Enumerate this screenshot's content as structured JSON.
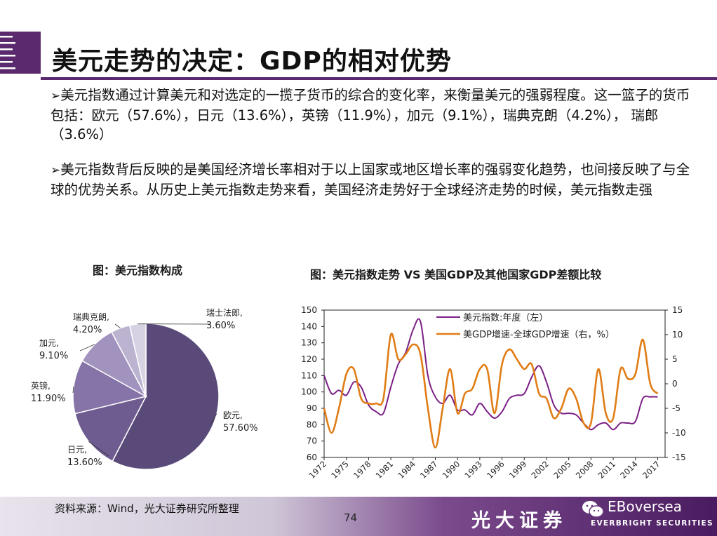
{
  "title": "美元走势的决定：GDP的相对优势",
  "bullets": [
    {
      "marker": "➢",
      "text": "美元指数通过计算美元和对选定的一揽子货币的综合的变化率，来衡量美元的强弱程度。这一篮子的货币包括：欧元（57.6%），日元（13.6%），英镑（11.9%），加元（9.1%），瑞典克朗（4.2%）， 瑞郎（3.6%）"
    },
    {
      "marker": "➢",
      "text": "美元指数背后反映的是美国经济增长率相对于以上国家或地区增长率的强弱变化趋势，也间接反映了与全球的优势关系。从历史上美元指数走势来看，美国经济走势好于全球经济走势的时候，美元指数走强"
    }
  ],
  "chart_titles": {
    "pie": "图：美元指数构成",
    "line": "图：美元指数走势 VS 美国GDP及其他国家GDP差额比较"
  },
  "chart_data": [
    {
      "type": "pie",
      "title": "图：美元指数构成",
      "slices": [
        {
          "label": "欧元,",
          "value_label": "57.60%",
          "value": 57.6,
          "color": "#5a4a7a"
        },
        {
          "label": "日元,",
          "value_label": "13.60%",
          "value": 13.6,
          "color": "#6e5c90"
        },
        {
          "label": "英镑,",
          "value_label": "11.90%",
          "value": 11.9,
          "color": "#8673a7"
        },
        {
          "label": "加元,",
          "value_label": "9.10%",
          "value": 9.1,
          "color": "#a193be"
        },
        {
          "label": "瑞典克朗,",
          "value_label": "4.20%",
          "value": 4.2,
          "color": "#bcb3d1"
        },
        {
          "label": "瑞士法郎,",
          "value_label": "3.60%",
          "value": 3.6,
          "color": "#d7d2e3"
        }
      ]
    },
    {
      "type": "line",
      "title": "图：美元指数走势 VS 美国GDP及其他国家GDP差额比较",
      "x_ticks": [
        "1972",
        "1975",
        "1978",
        "1981",
        "1984",
        "1987",
        "1990",
        "1993",
        "1996",
        "1999",
        "2002",
        "2005",
        "2008",
        "2011",
        "2014",
        "2017"
      ],
      "xlim": [
        1972,
        2018
      ],
      "y_left": {
        "lim": [
          60,
          150
        ],
        "ticks": [
          "60",
          "70",
          "80",
          "90",
          "100",
          "110",
          "120",
          "130",
          "140",
          "150"
        ]
      },
      "y_right": {
        "lim": [
          -15,
          15
        ],
        "ticks": [
          "-15",
          "-10",
          "-5",
          "0",
          "5",
          "10",
          "15"
        ]
      },
      "legend_position": "top",
      "series": [
        {
          "name": "美元指数:年度（左）",
          "axis": "left",
          "color": "#7b1f86",
          "x": [
            1972,
            1973,
            1974,
            1975,
            1976,
            1977,
            1978,
            1979,
            1980,
            1981,
            1982,
            1983,
            1984,
            1985,
            1986,
            1987,
            1988,
            1989,
            1990,
            1991,
            1992,
            1993,
            1994,
            1995,
            1996,
            1997,
            1998,
            1999,
            2000,
            2001,
            2002,
            2003,
            2004,
            2005,
            2006,
            2007,
            2008,
            2009,
            2010,
            2011,
            2012,
            2013,
            2014,
            2015,
            2016,
            2017
          ],
          "values": [
            110,
            99,
            101,
            98,
            106,
            103,
            92,
            88,
            87,
            103,
            117,
            124,
            138,
            143,
            110,
            97,
            93,
            98,
            89,
            89,
            86,
            93,
            88,
            84,
            88,
            96,
            98,
            99,
            109,
            116,
            106,
            92,
            87,
            87,
            86,
            81,
            77,
            80,
            81,
            77,
            81,
            81,
            82,
            96,
            97,
            97
          ]
        },
        {
          "name": "美GDP增速-全球GDP增速（右，%）",
          "axis": "right",
          "color": "#e07d16",
          "x": [
            1972,
            1973,
            1974,
            1975,
            1976,
            1977,
            1978,
            1979,
            1980,
            1981,
            1982,
            1983,
            1984,
            1985,
            1986,
            1987,
            1988,
            1989,
            1990,
            1991,
            1992,
            1993,
            1994,
            1995,
            1996,
            1997,
            1998,
            1999,
            2000,
            2001,
            2002,
            2003,
            2004,
            2005,
            2006,
            2007,
            2008,
            2009,
            2010,
            2011,
            2012,
            2013,
            2014,
            2015,
            2016,
            2017
          ],
          "values": [
            -5,
            -10,
            -5,
            2,
            3,
            -3,
            -4,
            -4,
            -3,
            10,
            5,
            6,
            8,
            6,
            -5,
            -13,
            -5,
            3,
            -6,
            -2,
            -1,
            3,
            3,
            -6,
            4,
            7,
            5,
            3,
            4,
            -2,
            -3,
            -7,
            -5,
            -1,
            -3,
            -8,
            -8,
            3,
            -6,
            -7,
            3,
            1,
            2,
            9,
            0,
            -2
          ]
        }
      ]
    }
  ],
  "footer": {
    "source": "资料来源：Wind，光大证券研究所整理",
    "page_number": "74",
    "brand_cn": "光大证券",
    "brand_handle": "EBoversea",
    "brand_en": "EVERBRIGHT SECURITIES"
  },
  "colors": {
    "accent": "#5b2a6e",
    "footer_dark": "#4a1b60"
  },
  "icons": [
    "corner-logo",
    "wechat-icon"
  ]
}
